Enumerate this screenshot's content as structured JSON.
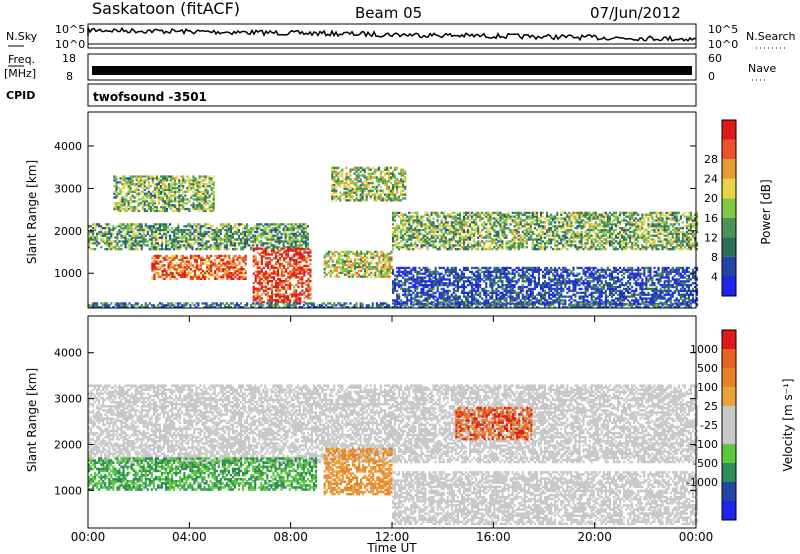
{
  "header": {
    "station": "Saskatoon (fitACF)",
    "beam": "Beam 05",
    "date": "07/Jun/2012"
  },
  "summary_panels": {
    "nsky_label": "N.Sky",
    "nsky_ticks": [
      "10^5",
      "10^0"
    ],
    "nsearch_label": "N.Search",
    "freq_label": "Freq.",
    "freq_unit": "[MHz]",
    "freq_ticks": [
      "18",
      "8"
    ],
    "nave_ticks": [
      "60",
      "0"
    ],
    "nave_label": "Nave",
    "cpid_label": "CPID",
    "cpid_value": "twofsound  -3501"
  },
  "chart_data": [
    {
      "type": "heatmap",
      "name": "power",
      "ylabel": "Slant Range [km]",
      "xlabel": "",
      "ylim": [
        180,
        4800
      ],
      "xlim_hours": [
        0,
        24
      ],
      "yticks": [
        1000,
        2000,
        3000,
        4000
      ],
      "colorbar": {
        "label": "Power [dB]",
        "ticks": [
          "4",
          "8",
          "12",
          "16",
          "20",
          "24",
          "28"
        ],
        "colors": [
          "#1f24e8",
          "#2246a8",
          "#2f6e5a",
          "#4a9456",
          "#7fc846",
          "#e8d44a",
          "#e89a35",
          "#e8532a",
          "#e01818"
        ]
      },
      "echo_regions": [
        {
          "t0": 1.0,
          "t1": 5.0,
          "r0": 2450,
          "r1": 3300,
          "level": 0.45
        },
        {
          "t0": 0.0,
          "t1": 8.7,
          "r0": 1550,
          "r1": 2150,
          "level": 0.4
        },
        {
          "t0": 2.5,
          "t1": 6.2,
          "r0": 850,
          "r1": 1400,
          "level": 0.8
        },
        {
          "t0": 6.5,
          "t1": 8.8,
          "r0": 300,
          "r1": 1600,
          "level": 0.9
        },
        {
          "t0": 9.3,
          "t1": 12.0,
          "r0": 900,
          "r1": 1500,
          "level": 0.55
        },
        {
          "t0": 9.6,
          "t1": 12.5,
          "r0": 2700,
          "r1": 3500,
          "level": 0.5
        },
        {
          "t0": 12.0,
          "t1": 24.0,
          "r0": 1550,
          "r1": 2450,
          "level": 0.45
        },
        {
          "t0": 12.0,
          "t1": 24.0,
          "r0": 250,
          "r1": 1150,
          "level": 0.15
        },
        {
          "t0": 0.0,
          "t1": 24.0,
          "r0": 180,
          "r1": 300,
          "level": 0.25
        }
      ]
    },
    {
      "type": "heatmap",
      "name": "velocity",
      "ylabel": "Slant Range [km]",
      "xlabel": "Time UT",
      "ylim": [
        180,
        4800
      ],
      "xlim_hours": [
        0,
        24
      ],
      "xticks": [
        "00:00",
        "04:00",
        "08:00",
        "12:00",
        "16:00",
        "20:00",
        "00:00"
      ],
      "yticks": [
        1000,
        2000,
        3000,
        4000
      ],
      "colorbar": {
        "label": "Velocity [m s⁻¹]",
        "ticks": [
          "1000",
          "500",
          "100",
          "25",
          "-25",
          "-100",
          "-500",
          "-1000"
        ],
        "colors": [
          "#1f24e8",
          "#2246a8",
          "#2f8a5a",
          "#5cc83a",
          "#c8c8c8",
          "#c8c8c8",
          "#e8a23a",
          "#e8822a",
          "#e86420",
          "#e01818"
        ]
      },
      "echo_regions": [
        {
          "t0": 0.0,
          "t1": 24.0,
          "r0": 1600,
          "r1": 3300,
          "level": "grey"
        },
        {
          "t0": 0.0,
          "t1": 9.0,
          "r0": 1000,
          "r1": 1700,
          "level": "green"
        },
        {
          "t0": 9.3,
          "t1": 12.0,
          "r0": 900,
          "r1": 1900,
          "level": "orange"
        },
        {
          "t0": 14.5,
          "t1": 17.5,
          "r0": 2100,
          "r1": 2800,
          "level": "red-orange"
        },
        {
          "t0": 12.0,
          "t1": 24.0,
          "r0": 250,
          "r1": 1400,
          "level": "grey"
        }
      ]
    }
  ],
  "colors": {
    "axis": "#000000",
    "trace": "#000000"
  }
}
